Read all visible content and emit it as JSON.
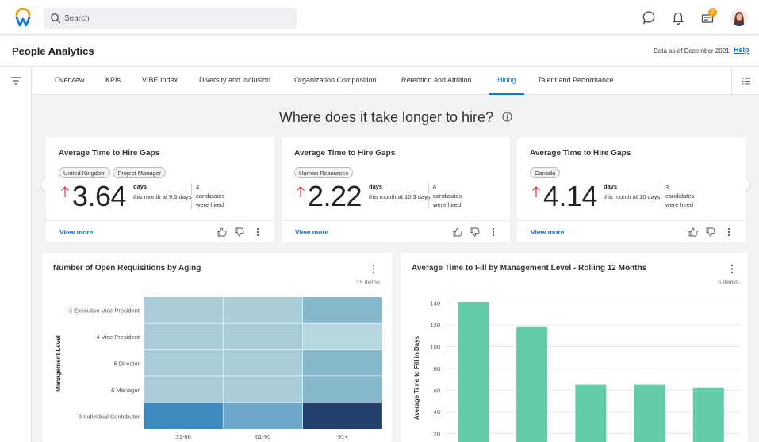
{
  "search": {
    "placeholder": "Search"
  },
  "notifications": {
    "badge_count": "5"
  },
  "header": {
    "title": "People Analytics",
    "data_as_of": "Data as of December 2021",
    "help": "Help"
  },
  "tabs": [
    {
      "label": "Overview"
    },
    {
      "label": "KPIs"
    },
    {
      "label": "VIBE Index"
    },
    {
      "label": "Diversity and Inclusion"
    },
    {
      "label": "Organization Composition"
    },
    {
      "label": "Retention and Attrition"
    },
    {
      "label": "Hiring",
      "active": true
    },
    {
      "label": "Talent and Performance"
    }
  ],
  "section": {
    "heading": "Where does it take longer to hire?"
  },
  "kpi_cards": [
    {
      "title": "Average Time to Hire Gaps",
      "chips": [
        "United Kingdom",
        "Project Manager"
      ],
      "value": "3.64",
      "unit": "days",
      "compare": "this month at 9.5 days",
      "count": "4",
      "count_label": "candidates were hired",
      "view_more": "View more"
    },
    {
      "title": "Average Time to Hire Gaps",
      "chips": [
        "Human Resources"
      ],
      "value": "2.22",
      "unit": "days",
      "compare": "this month at 10.3 days",
      "count": "6",
      "count_label": "candidates were hired",
      "view_more": "View more"
    },
    {
      "title": "Average Time to Hire Gaps",
      "chips": [
        "Canada"
      ],
      "value": "4.14",
      "unit": "days",
      "compare": "this month at 10 days",
      "count": "3",
      "count_label": "candidates were hired",
      "view_more": "View more"
    }
  ],
  "colors": {
    "accent": "#0875e1",
    "arrow_up": "#e5484d",
    "bar": "#62ccab"
  },
  "chart_data": [
    {
      "type": "heatmap",
      "title": "Number of Open Requisitions by Aging",
      "item_count": "15 items",
      "ylabel": "Management Level",
      "xlabel": "",
      "categories": [
        "31-60",
        "61-90",
        "91+"
      ],
      "rows": [
        "3 Executive Vice President",
        "4 Vice President",
        "5 Director",
        "6 Manager",
        "8 Individual Contributor"
      ],
      "cell_colors": [
        [
          "#a9ced9",
          "#a9ced9",
          "#87b7cc"
        ],
        [
          "#a9ced9",
          "#a9ced9",
          "#b7d7e0"
        ],
        [
          "#a9ced9",
          "#a9ced9",
          "#87b7cc"
        ],
        [
          "#a9ced9",
          "#a9ced9",
          "#87b7cc"
        ],
        [
          "#3e89be",
          "#6fa7c9",
          "#233f6c"
        ]
      ]
    },
    {
      "type": "bar",
      "title": "Average Time to Fill by Management Level - Rolling 12 Months",
      "item_count": "5 items",
      "ylabel": "Average Time to Fill in Days",
      "xlabel": "",
      "yticks": [
        20,
        40,
        60,
        80,
        100,
        120,
        140
      ],
      "ylim": [
        0,
        150
      ],
      "values": [
        141,
        118,
        65,
        65,
        62
      ],
      "grid": true
    }
  ]
}
